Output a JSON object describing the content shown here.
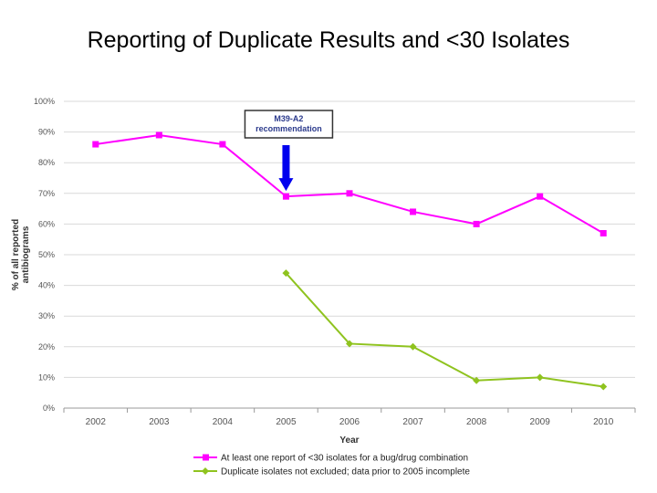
{
  "slide": {
    "title": "Reporting of Duplicate Results and <30 Isolates"
  },
  "chart_data": {
    "type": "line",
    "xlabel": "Year",
    "ylabel_lines": [
      "% of all reported",
      "antibiograms"
    ],
    "categories": [
      "2002",
      "2003",
      "2004",
      "2005",
      "2006",
      "2007",
      "2008",
      "2009",
      "2010"
    ],
    "y_ticks": [
      "0%",
      "10%",
      "20%",
      "30%",
      "40%",
      "50%",
      "60%",
      "70%",
      "80%",
      "90%",
      "100%"
    ],
    "ylim": [
      0,
      100
    ],
    "grid": true,
    "legend_position": "bottom",
    "series": [
      {
        "name": "At least one report of <30 isolates for a bug/drug combination",
        "color": "#ff00ff",
        "marker": "square",
        "values": [
          86,
          89,
          86,
          69,
          70,
          64,
          60,
          69,
          57
        ]
      },
      {
        "name": "Duplicate isolates not excluded; data prior to 2005 incomplete",
        "color": "#8fc31f",
        "marker": "diamond",
        "values": [
          null,
          null,
          null,
          44,
          21,
          20,
          9,
          10,
          7
        ]
      }
    ],
    "annotation": {
      "lines": [
        "M39-A2",
        "recommendation"
      ],
      "category": "2005",
      "arrow_color": "#0000ee"
    }
  }
}
